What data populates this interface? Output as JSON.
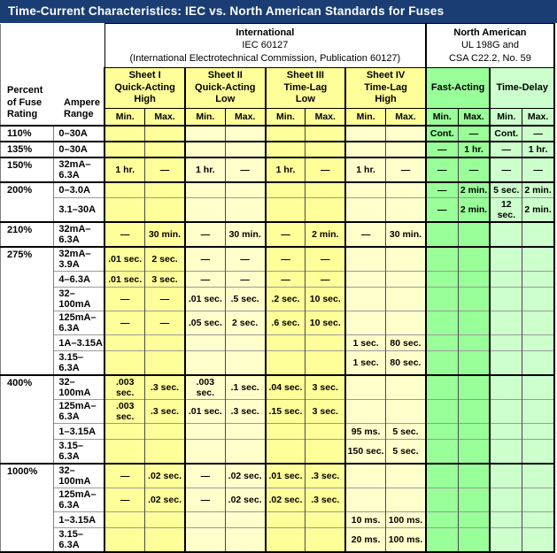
{
  "title": "Time-Current Characteristics: IEC vs. North American Standards for Fuses",
  "colors": {
    "title_bar": "#1a3e73",
    "sheet_bright_yellow": "#ffff99",
    "sheet_pale_yellow": "#ffffcc",
    "fast_acting_green": "#99ff99",
    "time_delay_green": "#ccffcc"
  },
  "header": {
    "percent_label": "Percent\nof Fuse\nRating",
    "ampere_label": "Ampere\nRange",
    "international": {
      "title": "International",
      "std": "IEC 60127",
      "sub": "(International Electrotechnical Commission, Publication 60127)"
    },
    "north_american": {
      "title": "North American",
      "std": "UL 198G and",
      "sub": "CSA C22.2, No. 59"
    },
    "iec_groups": [
      "Sheet I\nQuick-Acting\nHigh",
      "Sheet II\nQuick-Acting\nLow",
      "Sheet III\nTime-Lag\nLow",
      "Sheet IV\nTime-Lag\nHigh"
    ],
    "na_groups": [
      "Fast-Acting",
      "Time-Delay"
    ],
    "min_label": "Min.",
    "max_label": "Max."
  },
  "rows": [
    {
      "percent": "110%",
      "span": 1,
      "group": true,
      "ampere": "0–30A",
      "cells": [
        "",
        "",
        "",
        "",
        "",
        "",
        "",
        "",
        "Cont.",
        "—",
        "Cont.",
        "—"
      ]
    },
    {
      "percent": "135%",
      "span": 1,
      "group": true,
      "ampere": "0–30A",
      "cells": [
        "",
        "",
        "",
        "",
        "",
        "",
        "",
        "",
        "—",
        "1 hr.",
        "—",
        "1 hr."
      ]
    },
    {
      "percent": "150%",
      "span": 1,
      "group": true,
      "ampere": "32mA–6.3A",
      "cells": [
        "1 hr.",
        "—",
        "1 hr.",
        "—",
        "1 hr.",
        "—",
        "1 hr.",
        "—",
        "—",
        "—",
        "—",
        "—"
      ]
    },
    {
      "percent": "200%",
      "span": 2,
      "group": true,
      "ampere": "0–3.0A",
      "cells": [
        "",
        "",
        "",
        "",
        "",
        "",
        "",
        "",
        "—",
        "2 min.",
        "5 sec.",
        "2 min."
      ]
    },
    {
      "percent": "",
      "ampere": "3.1–30A",
      "cells": [
        "",
        "",
        "",
        "",
        "",
        "",
        "",
        "",
        "—",
        "2 min.",
        "12 sec.",
        "2 min."
      ]
    },
    {
      "percent": "210%",
      "span": 1,
      "group": true,
      "ampere": "32mA–6.3A",
      "cells": [
        "—",
        "30 min.",
        "—",
        "30 min.",
        "—",
        "2 min.",
        "—",
        "30 min.",
        "",
        "",
        "",
        ""
      ]
    },
    {
      "percent": "275%",
      "span": 6,
      "group": true,
      "ampere": "32mA–3.9A",
      "cells": [
        ".01 sec.",
        "2 sec.",
        "—",
        "—",
        "—",
        "—",
        "",
        "",
        "",
        "",
        "",
        ""
      ]
    },
    {
      "percent": "",
      "ampere": "4–6.3A",
      "cells": [
        ".01 sec.",
        "3 sec.",
        "—",
        "—",
        "—",
        "—",
        "",
        "",
        "",
        "",
        "",
        ""
      ]
    },
    {
      "percent": "",
      "ampere": "32–100mA",
      "cells": [
        "—",
        "—",
        ".01 sec.",
        ".5 sec.",
        ".2 sec.",
        "10 sec.",
        "",
        "",
        "",
        "",
        "",
        ""
      ]
    },
    {
      "percent": "",
      "ampere": "125mA–6.3A",
      "cells": [
        "—",
        "—",
        ".05 sec.",
        "2 sec.",
        ".6 sec.",
        "10 sec.",
        "",
        "",
        "",
        "",
        "",
        ""
      ]
    },
    {
      "percent": "",
      "ampere": "1A–3.15A",
      "cells": [
        "",
        "",
        "",
        "",
        "",
        "",
        "1 sec.",
        "80 sec.",
        "",
        "",
        "",
        ""
      ]
    },
    {
      "percent": "",
      "ampere": "3.15–6.3A",
      "cells": [
        "",
        "",
        "",
        "",
        "",
        "",
        "1 sec.",
        "80 sec.",
        "",
        "",
        "",
        ""
      ]
    },
    {
      "percent": "400%",
      "span": 4,
      "group": true,
      "ampere": "32–100mA",
      "cells": [
        ".003 sec.",
        ".3 sec.",
        ".003 sec.",
        ".1 sec.",
        ".04 sec.",
        "3 sec.",
        "",
        "",
        "",
        "",
        "",
        ""
      ]
    },
    {
      "percent": "",
      "ampere": "125mA–6.3A",
      "cells": [
        ".003 sec.",
        ".3 sec.",
        ".01 sec.",
        ".3 sec.",
        ".15 sec.",
        "3 sec.",
        "",
        "",
        "",
        "",
        "",
        ""
      ]
    },
    {
      "percent": "",
      "ampere": "1–3.15A",
      "cells": [
        "",
        "",
        "",
        "",
        "",
        "",
        "95 ms.",
        "5 sec.",
        "",
        "",
        "",
        ""
      ]
    },
    {
      "percent": "",
      "ampere": "3.15–6.3A",
      "cells": [
        "",
        "",
        "",
        "",
        "",
        "",
        "150 sec.",
        "5 sec.",
        "",
        "",
        "",
        ""
      ]
    },
    {
      "percent": "1000%",
      "span": 4,
      "group": true,
      "ampere": "32–100mA",
      "cells": [
        "—",
        ".02 sec.",
        "—",
        ".02 sec.",
        ".01 sec.",
        ".3 sec.",
        "",
        "",
        "",
        "",
        "",
        ""
      ]
    },
    {
      "percent": "",
      "ampere": "125mA–6.3A",
      "cells": [
        "—",
        ".02 sec.",
        "—",
        ".02 sec.",
        ".02 sec.",
        ".3 sec.",
        "",
        "",
        "",
        "",
        "",
        ""
      ]
    },
    {
      "percent": "",
      "ampere": "1–3.15A",
      "cells": [
        "",
        "",
        "",
        "",
        "",
        "",
        "10 ms.",
        "100 ms.",
        "",
        "",
        "",
        ""
      ]
    },
    {
      "percent": "",
      "ampere": "3.15–6.3A",
      "cells": [
        "",
        "",
        "",
        "",
        "",
        "",
        "20 ms.",
        "100 ms.",
        "",
        "",
        "",
        ""
      ]
    }
  ]
}
